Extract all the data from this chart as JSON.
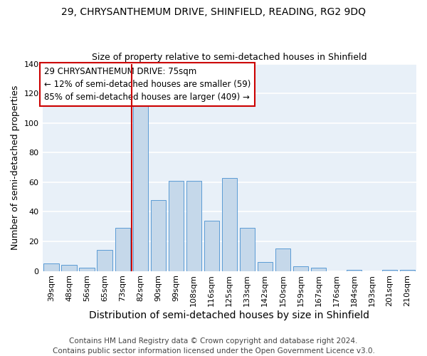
{
  "title1": "29, CHRYSANTHEMUM DRIVE, SHINFIELD, READING, RG2 9DQ",
  "title2": "Size of property relative to semi-detached houses in Shinfield",
  "xlabel": "Distribution of semi-detached houses by size in Shinfield",
  "ylabel": "Number of semi-detached properties",
  "footer_line1": "Contains HM Land Registry data © Crown copyright and database right 2024.",
  "footer_line2": "Contains public sector information licensed under the Open Government Licence v3.0.",
  "categories": [
    "39sqm",
    "48sqm",
    "56sqm",
    "65sqm",
    "73sqm",
    "82sqm",
    "90sqm",
    "99sqm",
    "108sqm",
    "116sqm",
    "125sqm",
    "133sqm",
    "142sqm",
    "150sqm",
    "159sqm",
    "167sqm",
    "176sqm",
    "184sqm",
    "193sqm",
    "201sqm",
    "210sqm"
  ],
  "values": [
    5,
    4,
    2,
    14,
    29,
    115,
    48,
    61,
    61,
    34,
    63,
    29,
    6,
    15,
    3,
    2,
    0,
    1,
    0,
    1,
    1
  ],
  "bar_color": "#c5d8ea",
  "bar_edge_color": "#5b9bd5",
  "plot_bg_color": "#e8f0f8",
  "fig_bg_color": "#ffffff",
  "grid_color": "#ffffff",
  "ylim": [
    0,
    140
  ],
  "yticks": [
    0,
    20,
    40,
    60,
    80,
    100,
    120,
    140
  ],
  "property_label": "29 CHRYSANTHEMUM DRIVE: 75sqm",
  "smaller_pct": "12%",
  "smaller_n": 59,
  "larger_pct": "85%",
  "larger_n": 409,
  "red_line_x": 4.5,
  "annotation_box_color": "#ffffff",
  "annotation_border_color": "#cc0000",
  "red_line_color": "#cc0000",
  "title1_fontsize": 10,
  "title2_fontsize": 9,
  "xlabel_fontsize": 10,
  "ylabel_fontsize": 9,
  "tick_fontsize": 8,
  "annot_fontsize": 8.5,
  "footer_fontsize": 7.5
}
